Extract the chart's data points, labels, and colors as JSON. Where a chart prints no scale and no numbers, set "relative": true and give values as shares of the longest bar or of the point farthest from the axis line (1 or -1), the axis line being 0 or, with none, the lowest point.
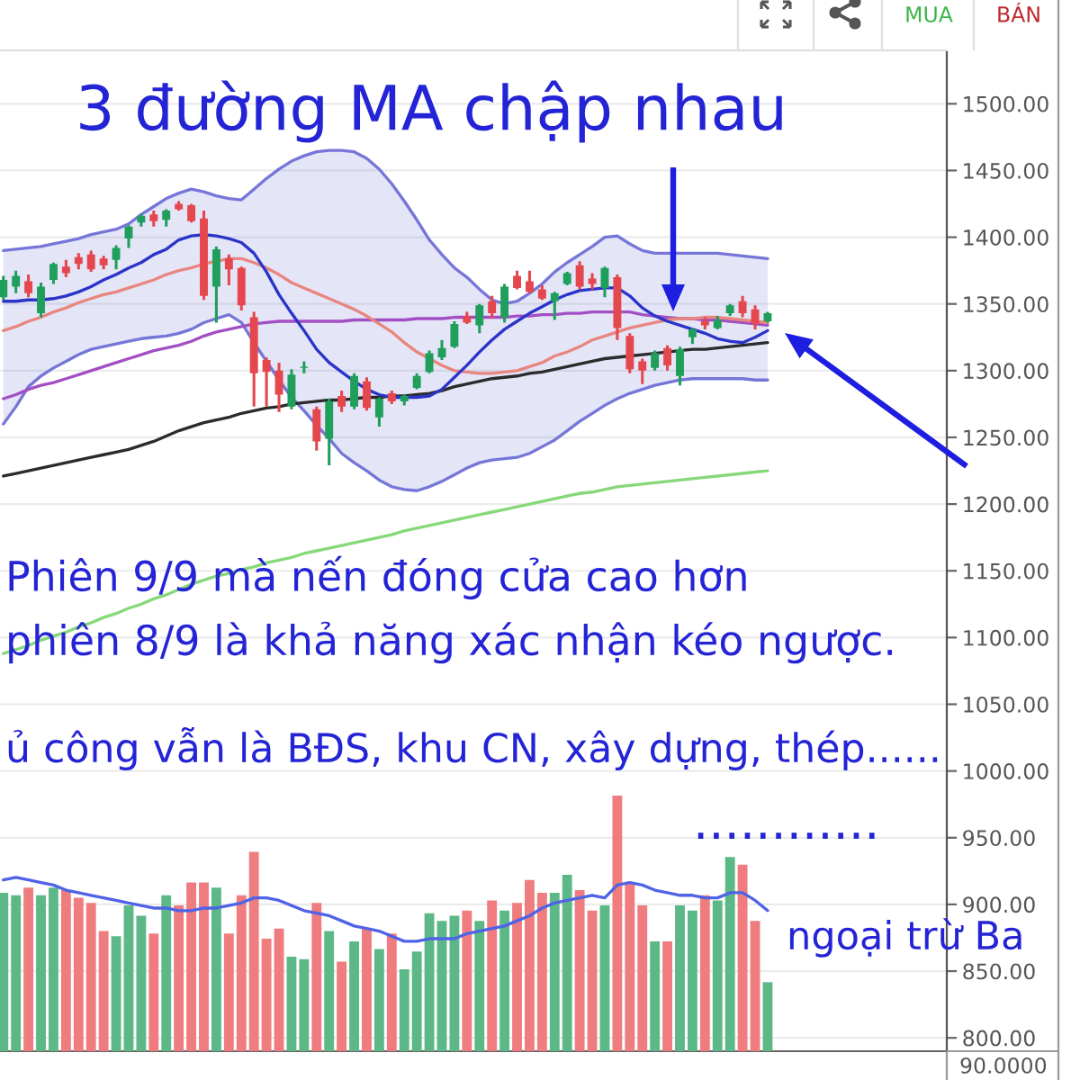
{
  "chart_data": [
    {
      "type": "candlestick",
      "categories": [
        null,
        null,
        null,
        null,
        null,
        null,
        null,
        null,
        null,
        null,
        null,
        null,
        null,
        null,
        null,
        null,
        null,
        null,
        null,
        null,
        null,
        null,
        null,
        null,
        null,
        null,
        null,
        null,
        null,
        null,
        null,
        null,
        null,
        null,
        null,
        null,
        null,
        null,
        null,
        null,
        null,
        null,
        null,
        null,
        null,
        null,
        null,
        null,
        null,
        null,
        null,
        null,
        null,
        null,
        null,
        null,
        null,
        null,
        null,
        null,
        null,
        null
      ],
      "ylim": [
        790,
        1540
      ],
      "yticks": [
        {
          "value": 800,
          "label": "800.00"
        },
        {
          "value": 850,
          "label": "850.00"
        },
        {
          "value": 900,
          "label": "900.00"
        },
        {
          "value": 950,
          "label": "950.00"
        },
        {
          "value": 1000,
          "label": "1000.00"
        },
        {
          "value": 1050,
          "label": "1050.00"
        },
        {
          "value": 1100,
          "label": "1100.00"
        },
        {
          "value": 1150,
          "label": "1150.00"
        },
        {
          "value": 1200,
          "label": "1200.00"
        },
        {
          "value": 1250,
          "label": "1250.00"
        },
        {
          "value": 1300,
          "label": "1300.00"
        },
        {
          "value": 1350,
          "label": "1350.00"
        },
        {
          "value": 1400,
          "label": "1400.00"
        },
        {
          "value": 1450,
          "label": "1450.00"
        },
        {
          "value": 1500,
          "label": "1500.00"
        }
      ],
      "grid": "y",
      "series": [
        {
          "type": "line",
          "color": "#7676d8",
          "values": [
            1390,
            1391,
            1392,
            1393,
            1395,
            1397,
            1399,
            1402,
            1404,
            1406,
            1410,
            1417,
            1423,
            1429,
            1433,
            1436,
            1434,
            1431,
            1429,
            1428,
            1436,
            1444,
            1451,
            1457,
            1461,
            1464,
            1465,
            1465,
            1464,
            1459,
            1451,
            1440,
            1427,
            1413,
            1398,
            1387,
            1377,
            1370,
            1361,
            1353,
            1350,
            1352,
            1358,
            1365,
            1374,
            1381,
            1387,
            1393,
            1400,
            1401,
            1395,
            1390,
            1388,
            1388,
            1388,
            1388,
            1388,
            1388,
            1387,
            1386,
            1385,
            1384
          ],
          "upper": [
            1390,
            1391,
            1392,
            1393,
            1395,
            1397,
            1399,
            1402,
            1404,
            1406,
            1410,
            1417,
            1423,
            1429,
            1433,
            1436,
            1434,
            1431,
            1429,
            1428,
            1436,
            1444,
            1451,
            1457,
            1461,
            1464,
            1465,
            1465,
            1464,
            1459,
            1451,
            1440,
            1427,
            1413,
            1398,
            1387,
            1377,
            1370,
            1361,
            1353,
            1350,
            1352,
            1358,
            1365,
            1374,
            1381,
            1387,
            1393,
            1400,
            1401,
            1395,
            1390,
            1388,
            1388,
            1388,
            1388,
            1388,
            1388,
            1387,
            1386,
            1385,
            1384
          ],
          "lower": [
            1260,
            1273,
            1288,
            1296,
            1302,
            1307,
            1312,
            1316,
            1318,
            1320,
            1322,
            1324,
            1325,
            1326,
            1328,
            1331,
            1336,
            1339,
            1342,
            1336,
            1321,
            1307,
            1293,
            1280,
            1270,
            1259,
            1249,
            1238,
            1231,
            1225,
            1218,
            1213,
            1211,
            1210,
            1213,
            1217,
            1222,
            1227,
            1231,
            1233,
            1234,
            1235,
            1238,
            1243,
            1248,
            1255,
            1262,
            1268,
            1274,
            1279,
            1283,
            1286,
            1289,
            1291,
            1293,
            1294,
            1294,
            1294,
            1294,
            1294,
            1293,
            1293
          ]
        },
        {
          "type": "line",
          "color": "#7676d8",
          "values": [
            1260,
            1273,
            1288,
            1296,
            1302,
            1307,
            1312,
            1316,
            1318,
            1320,
            1322,
            1324,
            1325,
            1326,
            1328,
            1331,
            1336,
            1339,
            1342,
            1336,
            1321,
            1307,
            1293,
            1280,
            1270,
            1259,
            1249,
            1238,
            1231,
            1225,
            1218,
            1213,
            1211,
            1210,
            1213,
            1217,
            1222,
            1227,
            1231,
            1233,
            1234,
            1235,
            1238,
            1243,
            1248,
            1255,
            1262,
            1268,
            1274,
            1279,
            1283,
            1286,
            1289,
            1291,
            1293,
            1294,
            1294,
            1294,
            1294,
            1294,
            1293,
            1293
          ]
        },
        {
          "type": "line",
          "color": "#86d879",
          "values": [
            1088,
            1091,
            1094,
            1098,
            1101,
            1104,
            1108,
            1111,
            1115,
            1118,
            1122,
            1125,
            1129,
            1132,
            1136,
            1140,
            1143,
            1146,
            1148,
            1151,
            1153,
            1156,
            1158,
            1160,
            1163,
            1165,
            1167,
            1169,
            1171,
            1173,
            1175,
            1177,
            1180,
            1182,
            1184,
            1186,
            1188,
            1190,
            1192,
            1194,
            1196,
            1198,
            1200,
            1202,
            1204,
            1206,
            1208,
            1209,
            1211,
            1213,
            1214,
            1215,
            1216,
            1217,
            1218,
            1219,
            1220,
            1221,
            1222,
            1223,
            1224,
            1225
          ]
        },
        {
          "type": "line",
          "color": "#2b2b2b",
          "values": [
            1221,
            1223,
            1225,
            1227,
            1229,
            1231,
            1233,
            1235,
            1237,
            1239,
            1241,
            1244,
            1247,
            1251,
            1255,
            1258,
            1261,
            1263,
            1265,
            1268,
            1270,
            1272,
            1273,
            1275,
            1276,
            1277,
            1278,
            1278,
            1279,
            1280,
            1280,
            1281,
            1281,
            1282,
            1283,
            1285,
            1288,
            1290,
            1292,
            1294,
            1295,
            1296,
            1298,
            1299,
            1301,
            1303,
            1305,
            1307,
            1309,
            1310,
            1311,
            1312,
            1313,
            1314,
            1315,
            1316,
            1316,
            1317,
            1318,
            1319,
            1320,
            1321
          ]
        },
        {
          "type": "line",
          "color": "#a24fc4",
          "values": [
            1279,
            1282,
            1286,
            1289,
            1291,
            1294,
            1297,
            1300,
            1303,
            1306,
            1309,
            1312,
            1315,
            1317,
            1319,
            1322,
            1326,
            1329,
            1331,
            1333,
            1335,
            1336,
            1337,
            1337,
            1337,
            1337,
            1337,
            1337,
            1338,
            1338,
            1338,
            1338,
            1338,
            1339,
            1339,
            1339,
            1340,
            1340,
            1340,
            1340,
            1340,
            1341,
            1341,
            1342,
            1342,
            1343,
            1343,
            1344,
            1344,
            1344,
            1344,
            1342,
            1341,
            1340,
            1339,
            1339,
            1338,
            1338,
            1337,
            1336,
            1335,
            1334
          ]
        },
        {
          "type": "line",
          "color": "#e8867f",
          "values": [
            1330,
            1333,
            1337,
            1340,
            1344,
            1347,
            1351,
            1354,
            1357,
            1359,
            1362,
            1365,
            1368,
            1372,
            1375,
            1377,
            1380,
            1382,
            1384,
            1384,
            1381,
            1377,
            1372,
            1366,
            1362,
            1358,
            1354,
            1350,
            1346,
            1341,
            1335,
            1329,
            1321,
            1314,
            1309,
            1304,
            1300,
            1299,
            1298,
            1298,
            1299,
            1300,
            1303,
            1306,
            1311,
            1314,
            1318,
            1323,
            1326,
            1329,
            1332,
            1334,
            1336,
            1338,
            1339,
            1339,
            1340,
            1340,
            1339,
            1338,
            1337,
            1336
          ]
        },
        {
          "type": "line",
          "color": "#2a34c8",
          "values": [
            1352,
            1352,
            1353,
            1353,
            1354,
            1356,
            1359,
            1363,
            1368,
            1372,
            1377,
            1381,
            1387,
            1391,
            1398,
            1401,
            1402,
            1401,
            1399,
            1396,
            1388,
            1374,
            1357,
            1343,
            1330,
            1316,
            1306,
            1299,
            1292,
            1286,
            1282,
            1280,
            1280,
            1280,
            1281,
            1286,
            1295,
            1304,
            1314,
            1323,
            1331,
            1337,
            1343,
            1348,
            1353,
            1357,
            1360,
            1361,
            1362,
            1362,
            1356,
            1347,
            1341,
            1337,
            1334,
            1331,
            1328,
            1324,
            1322,
            1321,
            1325,
            1330
          ]
        },
        {
          "ohlc": [
            [
              1355,
              1371,
              1353,
              1368
            ],
            [
              1363,
              1375,
              1358,
              1371
            ],
            [
              1367,
              1372,
              1355,
              1358
            ],
            [
              1343,
              1366,
              1340,
              1363
            ],
            [
              1368,
              1381,
              1365,
              1380
            ],
            [
              1378,
              1383,
              1370,
              1373
            ],
            [
              1385,
              1388,
              1376,
              1380
            ],
            [
              1387,
              1390,
              1374,
              1376
            ],
            [
              1384,
              1386,
              1376,
              1379
            ],
            [
              1383,
              1394,
              1376,
              1392
            ],
            [
              1399,
              1409,
              1392,
              1408
            ],
            [
              1411,
              1417,
              1408,
              1416
            ],
            [
              1417,
              1420,
              1408,
              1412
            ],
            [
              1413,
              1421,
              1408,
              1420
            ],
            [
              1425,
              1427,
              1420,
              1421
            ],
            [
              1424,
              1425,
              1411,
              1412
            ],
            [
              1414,
              1420,
              1353,
              1356
            ],
            [
              1363,
              1393,
              1336,
              1391
            ],
            [
              1384,
              1387,
              1364,
              1376
            ],
            [
              1377,
              1378,
              1345,
              1349
            ],
            [
              1340,
              1344,
              1273,
              1298
            ],
            [
              1308,
              1310,
              1273,
              1299
            ],
            [
              1300,
              1306,
              1269,
              1282
            ],
            [
              1273,
              1301,
              1271,
              1297
            ],
            [
              1302,
              1307,
              1298,
              1303
            ],
            [
              1271,
              1273,
              1240,
              1247
            ],
            [
              1249,
              1279,
              1229,
              1277
            ],
            [
              1281,
              1285,
              1269,
              1273
            ],
            [
              1273,
              1298,
              1271,
              1296
            ],
            [
              1292,
              1295,
              1270,
              1272
            ],
            [
              1265,
              1280,
              1258,
              1279
            ],
            [
              1283,
              1285,
              1275,
              1277
            ],
            [
              1277,
              1282,
              1274,
              1281
            ],
            [
              1287,
              1298,
              1286,
              1296
            ],
            [
              1299,
              1315,
              1298,
              1313
            ],
            [
              1310,
              1323,
              1308,
              1317
            ],
            [
              1318,
              1337,
              1317,
              1335
            ],
            [
              1341,
              1344,
              1335,
              1336
            ],
            [
              1334,
              1350,
              1328,
              1349
            ],
            [
              1352,
              1356,
              1339,
              1343
            ],
            [
              1340,
              1365,
              1336,
              1363
            ],
            [
              1371,
              1375,
              1361,
              1362
            ],
            [
              1367,
              1375,
              1358,
              1359
            ],
            [
              1361,
              1364,
              1353,
              1354
            ],
            [
              1352,
              1359,
              1338,
              1358
            ],
            [
              1365,
              1374,
              1364,
              1373
            ],
            [
              1379,
              1382,
              1361,
              1363
            ],
            [
              1369,
              1373,
              1361,
              1365
            ],
            [
              1362,
              1378,
              1355,
              1377
            ],
            [
              1370,
              1372,
              1323,
              1332
            ],
            [
              1326,
              1328,
              1298,
              1301
            ],
            [
              1307,
              1309,
              1290,
              1300
            ],
            [
              1302,
              1315,
              1300,
              1313
            ],
            [
              1317,
              1319,
              1300,
              1304
            ],
            [
              1296,
              1318,
              1289,
              1316
            ],
            [
              1325,
              1332,
              1320,
              1331
            ],
            [
              1337,
              1340,
              1331,
              1334
            ],
            [
              1332,
              1341,
              1331,
              1338
            ],
            [
              1343,
              1350,
              1341,
              1349
            ],
            [
              1352,
              1356,
              1340,
              1343
            ],
            [
              1346,
              1349,
              1331,
              1335
            ],
            [
              1337,
              1344,
              1336,
              1343
            ]
          ],
          "colors": [
            "#1f9e5c",
            "#1f9e5c",
            "#e4474d",
            "#1f9e5c",
            "#1f9e5c",
            "#e4474d",
            "#e4474d",
            "#e4474d",
            "#e4474d",
            "#1f9e5c",
            "#1f9e5c",
            "#1f9e5c",
            "#e4474d",
            "#1f9e5c",
            "#e4474d",
            "#e4474d",
            "#e4474d",
            "#1f9e5c",
            "#e4474d",
            "#e4474d",
            "#e4474d",
            "#e4474d",
            "#e4474d",
            "#1f9e5c",
            "#1f9e5c",
            "#e4474d",
            "#1f9e5c",
            "#e4474d",
            "#1f9e5c",
            "#e4474d",
            "#1f9e5c",
            "#e4474d",
            "#1f9e5c",
            "#1f9e5c",
            "#1f9e5c",
            "#1f9e5c",
            "#1f9e5c",
            "#e4474d",
            "#1f9e5c",
            "#e4474d",
            "#1f9e5c",
            "#e4474d",
            "#e4474d",
            "#e4474d",
            "#1f9e5c",
            "#1f9e5c",
            "#e4474d",
            "#e4474d",
            "#1f9e5c",
            "#e4474d",
            "#e4474d",
            "#e4474d",
            "#1f9e5c",
            "#e4474d",
            "#1f9e5c",
            "#1f9e5c",
            "#e4474d",
            "#1f9e5c",
            "#1f9e5c",
            "#e4474d",
            "#e4474d",
            "#1f9e5c"
          ]
        }
      ],
      "annotations": [
        "MUA",
        "BÁN",
        "3 đường MA chập nhau",
        "Phiên 9/9 mà nến đóng cửa cao hơn",
        "phiên 8/9 là khả năng xác nhận kéo ngược.",
        "ủ công vẫn là BĐS, khu CN, xây dựng, thép......",
        "............",
        "ngoại trừ Ba"
      ]
    },
    {
      "type": "bar",
      "relative": true,
      "categories": [
        null,
        null,
        null,
        null,
        null,
        null,
        null,
        null,
        null,
        null,
        null,
        null,
        null,
        null,
        null,
        null,
        null,
        null,
        null,
        null,
        null,
        null,
        null,
        null,
        null,
        null,
        null,
        null,
        null,
        null,
        null,
        null,
        null,
        null,
        null,
        null,
        null,
        null,
        null,
        null,
        null,
        null,
        null,
        null,
        null,
        null,
        null,
        null,
        null,
        null,
        null,
        null,
        null,
        null,
        null,
        null,
        null,
        null,
        null,
        null,
        null,
        null
      ],
      "series": [
        {
          "values": [
            0.62,
            0.61,
            0.64,
            0.61,
            0.64,
            0.63,
            0.6,
            0.58,
            0.47,
            0.45,
            0.57,
            0.53,
            0.46,
            0.61,
            0.57,
            0.66,
            0.66,
            0.64,
            0.46,
            0.61,
            0.78,
            0.44,
            0.48,
            0.37,
            0.36,
            0.58,
            0.47,
            0.35,
            0.43,
            0.48,
            0.4,
            0.46,
            0.32,
            0.39,
            0.54,
            0.51,
            0.53,
            0.55,
            0.51,
            0.59,
            0.55,
            0.58,
            0.67,
            0.62,
            0.62,
            0.69,
            0.63,
            0.55,
            0.57,
            1,
            0.66,
            0.57,
            0.43,
            0.43,
            0.57,
            0.55,
            0.61,
            0.59,
            0.76,
            0.73,
            0.51,
            0.27
          ],
          "colors": [
            "#5cb887",
            "#5cb887",
            "#ef7c7f",
            "#5cb887",
            "#5cb887",
            "#ef7c7f",
            "#ef7c7f",
            "#ef7c7f",
            "#ef7c7f",
            "#5cb887",
            "#5cb887",
            "#5cb887",
            "#ef7c7f",
            "#5cb887",
            "#ef7c7f",
            "#ef7c7f",
            "#ef7c7f",
            "#5cb887",
            "#ef7c7f",
            "#ef7c7f",
            "#ef7c7f",
            "#ef7c7f",
            "#ef7c7f",
            "#5cb887",
            "#5cb887",
            "#ef7c7f",
            "#5cb887",
            "#ef7c7f",
            "#5cb887",
            "#ef7c7f",
            "#5cb887",
            "#ef7c7f",
            "#5cb887",
            "#5cb887",
            "#5cb887",
            "#5cb887",
            "#5cb887",
            "#ef7c7f",
            "#5cb887",
            "#ef7c7f",
            "#5cb887",
            "#ef7c7f",
            "#ef7c7f",
            "#ef7c7f",
            "#5cb887",
            "#5cb887",
            "#ef7c7f",
            "#ef7c7f",
            "#5cb887",
            "#ef7c7f",
            "#ef7c7f",
            "#ef7c7f",
            "#5cb887",
            "#ef7c7f",
            "#5cb887",
            "#5cb887",
            "#ef7c7f",
            "#5cb887",
            "#5cb887",
            "#ef7c7f",
            "#ef7c7f",
            "#5cb887"
          ]
        },
        {
          "type": "line",
          "color": "#4f63e6",
          "values": [
            0.67,
            0.68,
            0.67,
            0.66,
            0.65,
            0.63,
            0.62,
            0.61,
            0.6,
            0.59,
            0.58,
            0.57,
            0.56,
            0.56,
            0.55,
            0.55,
            0.56,
            0.56,
            0.57,
            0.58,
            0.6,
            0.6,
            0.59,
            0.57,
            0.55,
            0.54,
            0.53,
            0.51,
            0.49,
            0.48,
            0.47,
            0.45,
            0.43,
            0.43,
            0.44,
            0.44,
            0.44,
            0.46,
            0.47,
            0.48,
            0.49,
            0.51,
            0.53,
            0.56,
            0.58,
            0.59,
            0.6,
            0.61,
            0.6,
            0.65,
            0.66,
            0.65,
            0.63,
            0.62,
            0.61,
            0.61,
            0.6,
            0.6,
            0.62,
            0.62,
            0.59,
            0.55
          ]
        }
      ],
      "annotations": [
        "90.0000"
      ]
    }
  ]
}
